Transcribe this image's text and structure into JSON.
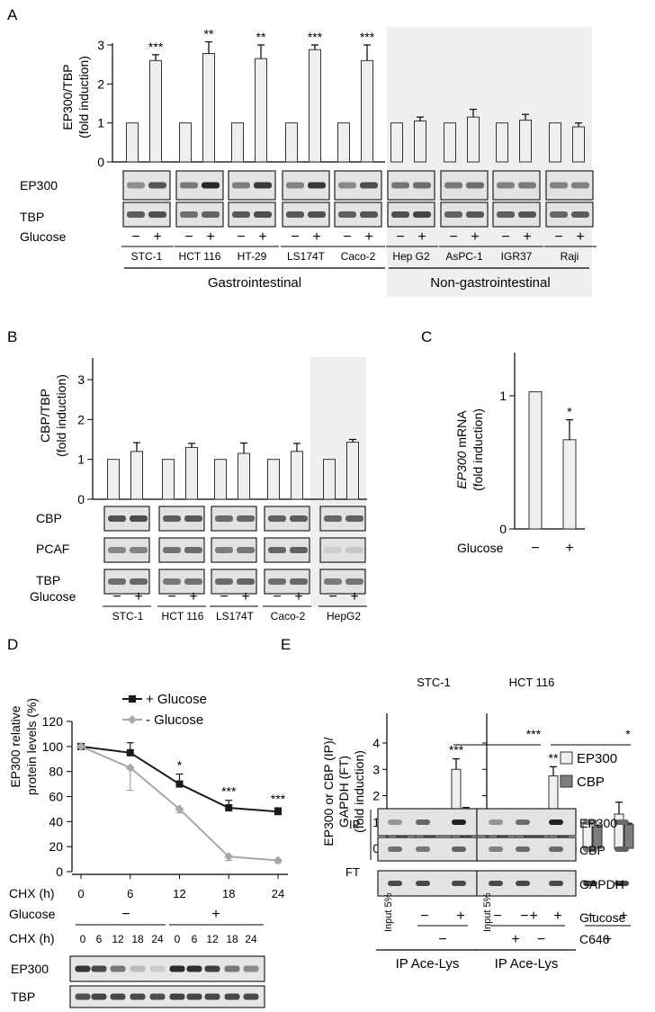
{
  "panel_a": {
    "label": "A",
    "ylabel_1": "EP300/TBP",
    "ylabel_2": "(fold induction)",
    "blots": [
      "EP300",
      "TBP"
    ],
    "glucose_label": "Glucose",
    "minus": "−",
    "plus": "+",
    "group_gi": "Gastrointestinal",
    "group_non": "Non-gastrointestinal",
    "lines": [
      "STC-1",
      "HCT 116",
      "HT-29",
      "LS174T",
      "Caco-2",
      "Hep G2",
      "AsPC-1",
      "IGR37",
      "Raji"
    ]
  },
  "panel_b": {
    "label": "B",
    "ylabel_1": "CBP/TBP",
    "ylabel_2": "(fold induction)",
    "blots": [
      "CBP",
      "PCAF",
      "TBP"
    ],
    "glucose_label": "Glucose",
    "minus": "−",
    "plus": "+",
    "lines": [
      "STC-1",
      "HCT 116",
      "LS174T",
      "Caco-2",
      "HepG2"
    ]
  },
  "panel_c": {
    "label": "C",
    "ylabel_italic": "EP300",
    "ylabel_rest": " mRNA",
    "ylabel_2": "(fold induction)",
    "glucose_label": "Glucose",
    "minus": "−",
    "plus": "+"
  },
  "panel_d": {
    "label": "D",
    "ylabel_1": "EP300 relative",
    "ylabel_2": "protein levels (%)",
    "legend_plus": "+ Glucose",
    "legend_minus": "- Glucose",
    "chx_label": "CHX (h)",
    "glucose_label": "Glucose",
    "minus": "−",
    "plus": "+",
    "blots": [
      "EP300",
      "TBP"
    ],
    "blot_times": [
      "0",
      "6",
      "12",
      "18",
      "24",
      "0",
      "6",
      "12",
      "18",
      "24"
    ]
  },
  "panel_e": {
    "label": "E",
    "title_left": "STC-1",
    "title_right": "HCT 116",
    "ylabel_1": "EP300 or CBP (IP)/",
    "ylabel_2": "GAPDH (FT)",
    "ylabel_3": "(fold induction)",
    "legend": [
      "EP300",
      "CBP"
    ],
    "ip_label": "IP",
    "ft_label": "FT",
    "blots_ip": [
      "EP300",
      "CBP"
    ],
    "blot_ft": "GAPDH",
    "input_label": "Input 5%",
    "glucose_label": "Glucose",
    "c646_label": "C646",
    "minus": "−",
    "plus": "+",
    "ip_ace": "IP Ace-Lys"
  },
  "chart_data": [
    {
      "panel": "A",
      "type": "bar",
      "categories": [
        "STC-1",
        "HCT 116",
        "HT-29",
        "LS174T",
        "Caco-2",
        "Hep G2",
        "AsPC-1",
        "IGR37",
        "Raji"
      ],
      "ylabel": "EP300/TBP (fold induction)",
      "ylim": [
        0,
        3
      ],
      "yticks": [
        "0",
        "1",
        "2",
        "3"
      ],
      "series": [
        {
          "name": "−",
          "values": [
            1,
            1,
            1,
            1,
            1,
            1,
            1,
            1,
            1
          ],
          "errors": [
            0,
            0,
            0,
            0,
            0,
            0.01,
            0,
            0,
            0.01
          ]
        },
        {
          "name": "+",
          "values": [
            2.6,
            2.78,
            2.65,
            2.88,
            2.6,
            1.05,
            1.15,
            1.07,
            0.9
          ],
          "errors": [
            0.15,
            0.3,
            0.35,
            0.12,
            0.4,
            0.1,
            0.2,
            0.15,
            0.1
          ]
        }
      ],
      "significance": [
        "***",
        "**",
        "**",
        "***",
        "***",
        "",
        "",
        "",
        ""
      ]
    },
    {
      "panel": "B",
      "type": "bar",
      "categories": [
        "STC-1",
        "HCT 116",
        "LS174T",
        "Caco-2",
        "HepG2"
      ],
      "ylabel": "CBP/TBP (fold induction)",
      "ylim": [
        0,
        3
      ],
      "yticks": [
        "0",
        "1",
        "2",
        "3"
      ],
      "series": [
        {
          "name": "−",
          "values": [
            1,
            1,
            1,
            1,
            1
          ],
          "errors": [
            0,
            0,
            0,
            0,
            0
          ]
        },
        {
          "name": "+",
          "values": [
            1.2,
            1.3,
            1.15,
            1.2,
            1.43
          ],
          "errors": [
            0.22,
            0.1,
            0.26,
            0.2,
            0.07
          ]
        }
      ]
    },
    {
      "panel": "C",
      "type": "bar",
      "categories": [
        "−",
        "+"
      ],
      "ylabel": "EP300 mRNA (fold induction)",
      "ylim": [
        0,
        1.4
      ],
      "yticks": [
        "0",
        "1"
      ],
      "values": [
        1.03,
        0.67
      ],
      "errors": [
        0,
        0.15
      ],
      "significance": [
        "",
        "*"
      ]
    },
    {
      "panel": "D",
      "type": "line",
      "x": [
        0,
        6,
        12,
        18,
        24
      ],
      "xlabel": "CHX (h)",
      "xticks": [
        "0",
        "6",
        "12",
        "18",
        "24"
      ],
      "ylabel": "EP300 relative protein levels (%)",
      "ylim": [
        0,
        120
      ],
      "yticks": [
        "0",
        "20",
        "40",
        "60",
        "80",
        "100",
        "120"
      ],
      "series": [
        {
          "name": "+ Glucose",
          "values": [
            100,
            95,
            70,
            51,
            48
          ],
          "errors": [
            0,
            8,
            8,
            6,
            3
          ]
        },
        {
          "name": "- Glucose",
          "values": [
            100,
            83,
            50,
            12,
            9
          ],
          "errors": [
            0,
            18,
            3,
            3,
            2
          ]
        }
      ],
      "significance": [
        "",
        "",
        "*",
        "***",
        "***"
      ]
    },
    {
      "panel": "E",
      "type": "bar",
      "panels": [
        "STC-1",
        "HCT 116"
      ],
      "ylabel": "EP300 or CBP (IP)/ GAPDH (FT) (fold induction)",
      "ylim": [
        0,
        4.5
      ],
      "yticks": [
        "0",
        "1",
        "2",
        "3",
        "4"
      ],
      "groups": [
        "Input 5%",
        "− Glucose, − C646",
        "+ Glucose, − C646",
        "− Glucose, + C646",
        "+ Glucose, + C646"
      ],
      "series_left": [
        {
          "name": "EP300",
          "values": [
            1,
            1,
            3.0,
            0.8,
            1.0
          ],
          "errors": [
            0,
            0,
            0.4,
            0.15,
            0.3
          ]
        },
        {
          "name": "CBP",
          "values": [
            1,
            1,
            1.25,
            1.3,
            0.85
          ],
          "errors": [
            0,
            0,
            0.3,
            0.2,
            0.2
          ]
        }
      ],
      "series_right": [
        {
          "name": "EP300",
          "values": [
            1,
            1,
            2.75,
            0.95,
            1.3
          ],
          "errors": [
            0,
            0,
            0.35,
            0.1,
            0.45
          ]
        },
        {
          "name": "CBP",
          "values": [
            1,
            1,
            1.0,
            0.82,
            0.9
          ],
          "errors": [
            0,
            0,
            0.05,
            0.06,
            0.05
          ]
        }
      ],
      "significance_left": [
        "***",
        "***"
      ],
      "significance_right": [
        "**",
        "*"
      ]
    }
  ]
}
